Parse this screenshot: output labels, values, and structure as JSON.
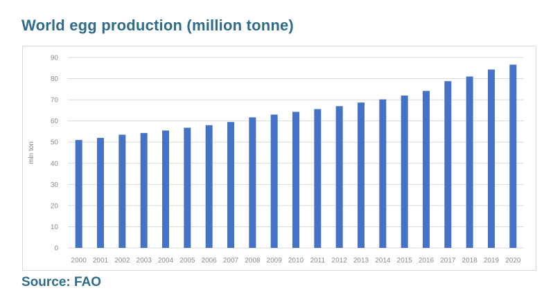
{
  "title": "World egg production (million tonne)",
  "source": "Source: FAO",
  "chart_data": {
    "type": "bar",
    "categories": [
      "2000",
      "2001",
      "2002",
      "2003",
      "2004",
      "2005",
      "2006",
      "2007",
      "2008",
      "2009",
      "2010",
      "2011",
      "2012",
      "2013",
      "2014",
      "2015",
      "2016",
      "2017",
      "2018",
      "2019",
      "2020"
    ],
    "values": [
      51,
      52,
      53.5,
      54.3,
      55.5,
      56.8,
      58,
      59.5,
      61.7,
      63,
      64.3,
      65.6,
      67,
      68.7,
      70.2,
      72,
      74.2,
      78.8,
      81,
      84.3,
      86.6
    ],
    "ylabel": "mln ton",
    "xlabel": "",
    "ylim": [
      0,
      90
    ],
    "yticks": [
      0,
      10,
      20,
      30,
      40,
      50,
      60,
      70,
      80,
      90
    ],
    "grid": true,
    "bar_color": "#4472c4",
    "grid_color": "#d9d9d9"
  }
}
